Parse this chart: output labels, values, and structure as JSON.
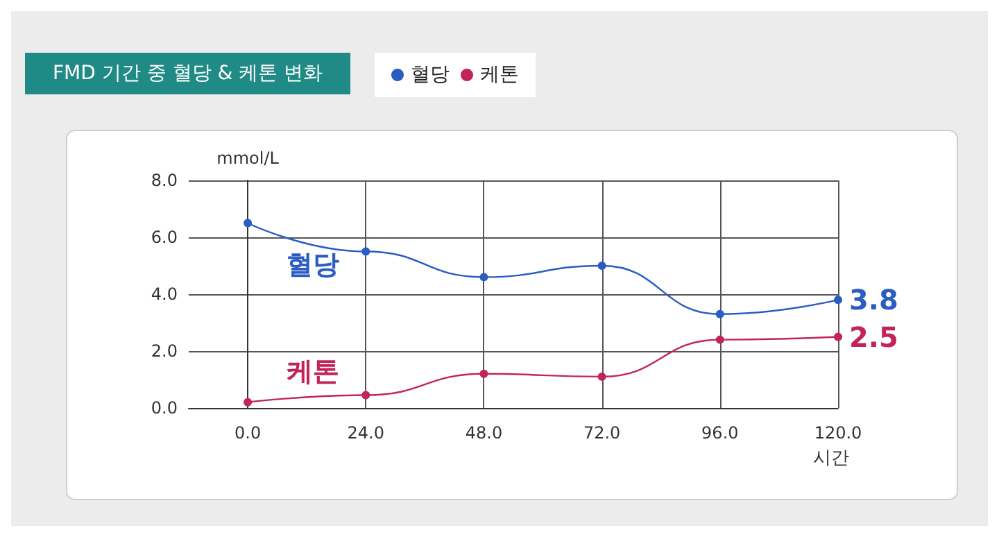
{
  "chart_data": {
    "type": "line",
    "title": "FMD 기간 중 혈당 & 케톤 변화",
    "ylabel": "mmol/L",
    "xlabel": "시간",
    "x": [
      0,
      24,
      48,
      72,
      96,
      120
    ],
    "series": [
      {
        "name": "혈당",
        "color": "#2a5cc4",
        "values": [
          6.5,
          5.5,
          4.6,
          5.0,
          3.3,
          3.8
        ],
        "value_labels": [
          null,
          null,
          null,
          null,
          null,
          "3.8"
        ]
      },
      {
        "name": "케톤",
        "color": "#c2245a",
        "values": [
          0.2,
          0.45,
          1.2,
          1.1,
          2.4,
          2.5
        ],
        "value_labels": [
          null,
          null,
          null,
          null,
          null,
          "2.5"
        ]
      }
    ],
    "xlim": [
      -12,
      120
    ],
    "xticks": [
      {
        "value": 0,
        "label": "0.0"
      },
      {
        "value": 24,
        "label": "24.0"
      },
      {
        "value": 48,
        "label": "48.0"
      },
      {
        "value": 72,
        "label": "72.0"
      },
      {
        "value": 96,
        "label": "96.0"
      },
      {
        "value": 120,
        "label": "120.0"
      }
    ],
    "ylim": [
      0,
      8
    ],
    "yticks": [
      {
        "value": 0,
        "label": "0.0"
      },
      {
        "value": 2,
        "label": "2.0"
      },
      {
        "value": 4,
        "label": "4.0"
      },
      {
        "value": 6,
        "label": "6.0"
      },
      {
        "value": 8,
        "label": "8.0"
      }
    ],
    "grid": true,
    "legend": "top",
    "marker": "circle",
    "line_style": "solid"
  }
}
